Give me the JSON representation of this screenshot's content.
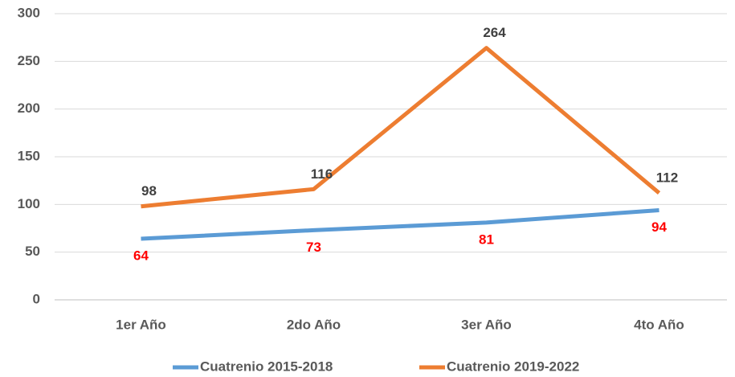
{
  "chart_data": {
    "type": "line",
    "categories": [
      "1er Año",
      "2do Año",
      "3er Año",
      "4to Año"
    ],
    "series": [
      {
        "name": "Cuatrenio 2015-2018",
        "color": "#5b9bd5",
        "label_color": "#ff0000",
        "values": [
          64,
          73,
          81,
          94
        ]
      },
      {
        "name": "Cuatrenio 2019-2022",
        "color": "#ed7d31",
        "label_color": "#404040",
        "values": [
          98,
          116,
          264,
          112
        ]
      }
    ],
    "ylim": [
      0,
      300
    ],
    "yticks": [
      0,
      50,
      100,
      150,
      200,
      250,
      300
    ],
    "grid": true,
    "legend": "bottom"
  }
}
